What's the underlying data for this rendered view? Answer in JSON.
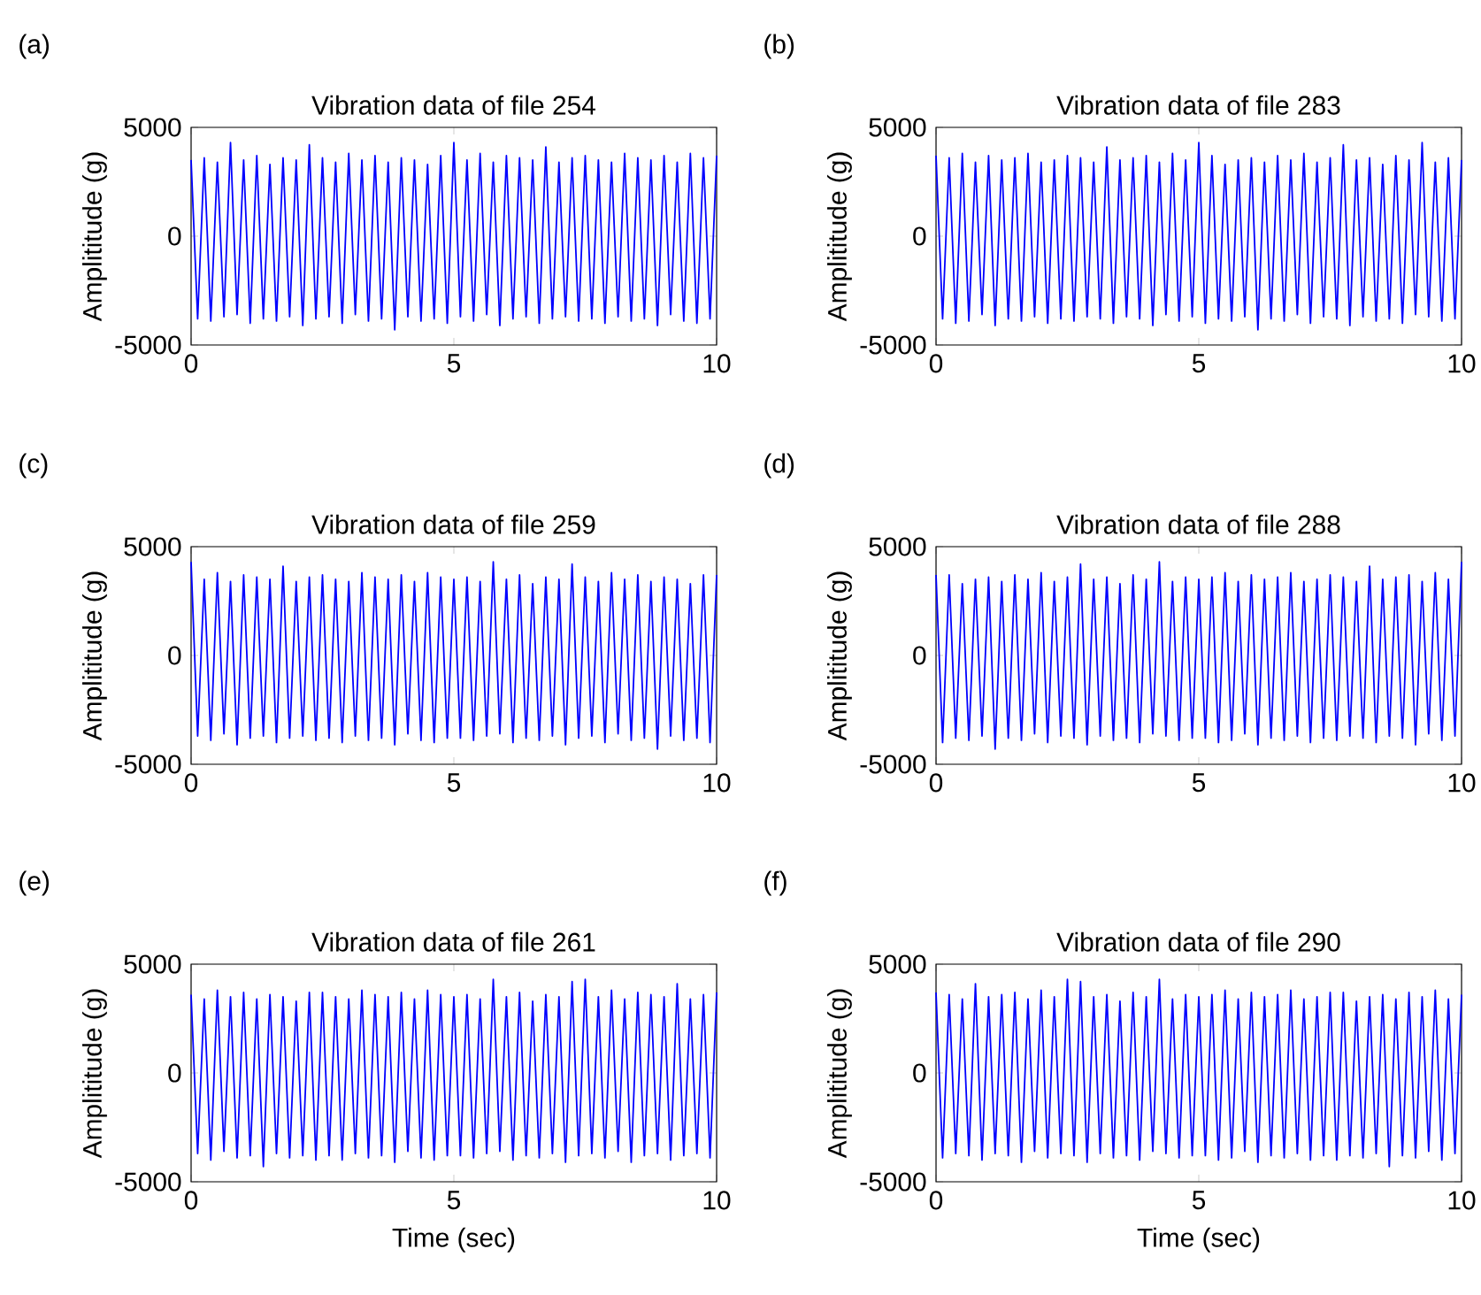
{
  "chart_data": [
    {
      "type": "line",
      "title": "Vibration data of file 254",
      "ylabel": "Amplititude (g)",
      "annotations": [
        "(a)"
      ],
      "color": "#0000ff",
      "xlim": [
        0,
        10
      ],
      "ylim": [
        -5000,
        5000
      ],
      "xticks": [
        0,
        5,
        10
      ],
      "yticks": [
        -5000,
        0,
        5000
      ],
      "x": [
        0,
        0.125,
        0.25,
        0.375,
        0.5,
        0.625,
        0.75,
        0.875,
        1,
        1.125,
        1.25,
        1.375,
        1.5,
        1.625,
        1.75,
        1.875,
        2,
        2.125,
        2.25,
        2.375,
        2.5,
        2.625,
        2.75,
        2.875,
        3,
        3.125,
        3.25,
        3.375,
        3.5,
        3.625,
        3.75,
        3.875,
        4,
        4.125,
        4.25,
        4.375,
        4.5,
        4.625,
        4.75,
        4.875,
        5,
        5.125,
        5.25,
        5.375,
        5.5,
        5.625,
        5.75,
        5.875,
        6,
        6.125,
        6.25,
        6.375,
        6.5,
        6.625,
        6.75,
        6.875,
        7,
        7.125,
        7.25,
        7.375,
        7.5,
        7.625,
        7.75,
        7.875,
        8,
        8.125,
        8.25,
        8.375,
        8.5,
        8.625,
        8.75,
        8.875,
        9,
        9.125,
        9.25,
        9.375,
        9.5,
        9.625,
        9.75,
        9.875,
        10
      ],
      "values": [
        3500,
        -3800,
        3600,
        -3900,
        3400,
        -3700,
        4300,
        -3600,
        3500,
        -4000,
        3700,
        -3800,
        3300,
        -3900,
        3600,
        -3700,
        3500,
        -4100,
        4200,
        -3800,
        3600,
        -3700,
        3400,
        -4000,
        3800,
        -3600,
        3500,
        -3900,
        3700,
        -3800,
        3400,
        -4300,
        3600,
        -3700,
        3500,
        -3900,
        3300,
        -3800,
        3700,
        -4000,
        4300,
        -3700,
        3500,
        -3900,
        3800,
        -3600,
        3400,
        -4100,
        3700,
        -3800,
        3600,
        -3700,
        3500,
        -4000,
        4100,
        -3800,
        3400,
        -3700,
        3600,
        -3900,
        3700,
        -3800,
        3500,
        -4000,
        3400,
        -3700,
        3800,
        -3900,
        3600,
        -3800,
        3500,
        -4100,
        3700,
        -3600,
        3400,
        -3900,
        3800,
        -4000,
        3600,
        -3800,
        3700
      ]
    },
    {
      "type": "line",
      "title": "Vibration data of file 283",
      "ylabel": "Amplititude (g)",
      "annotations": [
        "(b)"
      ],
      "color": "#0000ff",
      "xlim": [
        0,
        10
      ],
      "ylim": [
        -5000,
        5000
      ],
      "xticks": [
        0,
        5,
        10
      ],
      "yticks": [
        -5000,
        0,
        5000
      ],
      "x": [
        0,
        0.125,
        0.25,
        0.375,
        0.5,
        0.625,
        0.75,
        0.875,
        1,
        1.125,
        1.25,
        1.375,
        1.5,
        1.625,
        1.75,
        1.875,
        2,
        2.125,
        2.25,
        2.375,
        2.5,
        2.625,
        2.75,
        2.875,
        3,
        3.125,
        3.25,
        3.375,
        3.5,
        3.625,
        3.75,
        3.875,
        4,
        4.125,
        4.25,
        4.375,
        4.5,
        4.625,
        4.75,
        4.875,
        5,
        5.125,
        5.25,
        5.375,
        5.5,
        5.625,
        5.75,
        5.875,
        6,
        6.125,
        6.25,
        6.375,
        6.5,
        6.625,
        6.75,
        6.875,
        7,
        7.125,
        7.25,
        7.375,
        7.5,
        7.625,
        7.75,
        7.875,
        8,
        8.125,
        8.25,
        8.375,
        8.5,
        8.625,
        8.75,
        8.875,
        9,
        9.125,
        9.25,
        9.375,
        9.5,
        9.625,
        9.75,
        9.875,
        10
      ],
      "values": [
        3700,
        -3800,
        3600,
        -4000,
        3800,
        -3900,
        3400,
        -3600,
        3700,
        -4100,
        3500,
        -3800,
        3600,
        -3900,
        3800,
        -3700,
        3400,
        -4000,
        3500,
        -3800,
        3700,
        -3900,
        3600,
        -3700,
        3400,
        -3800,
        4100,
        -4000,
        3500,
        -3700,
        3600,
        -3800,
        3700,
        -4100,
        3400,
        -3600,
        3800,
        -3900,
        3500,
        -3700,
        4300,
        -4000,
        3700,
        -3800,
        3300,
        -3900,
        3500,
        -3700,
        3600,
        -4300,
        3400,
        -3800,
        3700,
        -3900,
        3500,
        -3600,
        3800,
        -4000,
        3400,
        -3700,
        3600,
        -3800,
        4200,
        -4100,
        3500,
        -3700,
        3600,
        -3900,
        3300,
        -3800,
        3700,
        -4000,
        3500,
        -3600,
        4300,
        -3700,
        3400,
        -3900,
        3600,
        -3800,
        3500
      ]
    },
    {
      "type": "line",
      "title": "Vibration data of file 259",
      "ylabel": "Amplititude (g)",
      "annotations": [
        "(c)"
      ],
      "color": "#0000ff",
      "xlim": [
        0,
        10
      ],
      "ylim": [
        -5000,
        5000
      ],
      "xticks": [
        0,
        5,
        10
      ],
      "yticks": [
        -5000,
        0,
        5000
      ],
      "x": [
        0,
        0.125,
        0.25,
        0.375,
        0.5,
        0.625,
        0.75,
        0.875,
        1,
        1.125,
        1.25,
        1.375,
        1.5,
        1.625,
        1.75,
        1.875,
        2,
        2.125,
        2.25,
        2.375,
        2.5,
        2.625,
        2.75,
        2.875,
        3,
        3.125,
        3.25,
        3.375,
        3.5,
        3.625,
        3.75,
        3.875,
        4,
        4.125,
        4.25,
        4.375,
        4.5,
        4.625,
        4.75,
        4.875,
        5,
        5.125,
        5.25,
        5.375,
        5.5,
        5.625,
        5.75,
        5.875,
        6,
        6.125,
        6.25,
        6.375,
        6.5,
        6.625,
        6.75,
        6.875,
        7,
        7.125,
        7.25,
        7.375,
        7.5,
        7.625,
        7.75,
        7.875,
        8,
        8.125,
        8.25,
        8.375,
        8.5,
        8.625,
        8.75,
        8.875,
        9,
        9.125,
        9.25,
        9.375,
        9.5,
        9.625,
        9.75,
        9.875,
        10
      ],
      "values": [
        4300,
        -3700,
        3500,
        -3900,
        3800,
        -3600,
        3400,
        -4100,
        3700,
        -3800,
        3600,
        -3700,
        3500,
        -4000,
        4100,
        -3800,
        3400,
        -3700,
        3600,
        -3900,
        3700,
        -3800,
        3500,
        -4000,
        3400,
        -3700,
        3800,
        -3900,
        3600,
        -3800,
        3500,
        -4100,
        3700,
        -3600,
        3400,
        -3900,
        3800,
        -4000,
        3600,
        -3800,
        3500,
        -3800,
        3600,
        -3900,
        3400,
        -3700,
        4300,
        -3600,
        3500,
        -4000,
        3700,
        -3800,
        3300,
        -3900,
        3600,
        -3700,
        3500,
        -4100,
        4200,
        -3800,
        3600,
        -3700,
        3400,
        -4000,
        3800,
        -3600,
        3500,
        -3900,
        3700,
        -3800,
        3400,
        -4300,
        3600,
        -3700,
        3500,
        -3900,
        3300,
        -3800,
        3700,
        -4000,
        3700
      ]
    },
    {
      "type": "line",
      "title": "Vibration data of file 288",
      "ylabel": "Amplititude (g)",
      "annotations": [
        "(d)"
      ],
      "color": "#0000ff",
      "xlim": [
        0,
        10
      ],
      "ylim": [
        -5000,
        5000
      ],
      "xticks": [
        0,
        5,
        10
      ],
      "yticks": [
        -5000,
        0,
        5000
      ],
      "x": [
        0,
        0.125,
        0.25,
        0.375,
        0.5,
        0.625,
        0.75,
        0.875,
        1,
        1.125,
        1.25,
        1.375,
        1.5,
        1.625,
        1.75,
        1.875,
        2,
        2.125,
        2.25,
        2.375,
        2.5,
        2.625,
        2.75,
        2.875,
        3,
        3.125,
        3.25,
        3.375,
        3.5,
        3.625,
        3.75,
        3.875,
        4,
        4.125,
        4.25,
        4.375,
        4.5,
        4.625,
        4.75,
        4.875,
        5,
        5.125,
        5.25,
        5.375,
        5.5,
        5.625,
        5.75,
        5.875,
        6,
        6.125,
        6.25,
        6.375,
        6.5,
        6.625,
        6.75,
        6.875,
        7,
        7.125,
        7.25,
        7.375,
        7.5,
        7.625,
        7.75,
        7.875,
        8,
        8.125,
        8.25,
        8.375,
        8.5,
        8.625,
        8.75,
        8.875,
        9,
        9.125,
        9.25,
        9.375,
        9.5,
        9.625,
        9.75,
        9.875,
        10
      ],
      "values": [
        3700,
        -4000,
        3700,
        -3800,
        3300,
        -3900,
        3500,
        -3700,
        3600,
        -4300,
        3400,
        -3800,
        3700,
        -3900,
        3500,
        -3600,
        3800,
        -4000,
        3400,
        -3700,
        3600,
        -3800,
        4200,
        -4100,
        3500,
        -3700,
        3600,
        -3900,
        3300,
        -3800,
        3700,
        -4000,
        3500,
        -3600,
        4300,
        -3700,
        3400,
        -3900,
        3600,
        -3800,
        3500,
        -3800,
        3600,
        -4000,
        3800,
        -3900,
        3400,
        -3600,
        3700,
        -4100,
        3500,
        -3800,
        3600,
        -3900,
        3800,
        -3700,
        3400,
        -4000,
        3500,
        -3800,
        3700,
        -3900,
        3600,
        -3700,
        3400,
        -3800,
        4100,
        -4000,
        3500,
        -3700,
        3600,
        -3800,
        3700,
        -4100,
        3400,
        -3600,
        3800,
        -3900,
        3500,
        -3700,
        4300
      ]
    },
    {
      "type": "line",
      "title": "Vibration data of file 261",
      "xlabel": "Time (sec)",
      "ylabel": "Amplititude (g)",
      "annotations": [
        "(e)"
      ],
      "color": "#0000ff",
      "xlim": [
        0,
        10
      ],
      "ylim": [
        -5000,
        5000
      ],
      "xticks": [
        0,
        5,
        10
      ],
      "yticks": [
        -5000,
        0,
        5000
      ],
      "x": [
        0,
        0.125,
        0.25,
        0.375,
        0.5,
        0.625,
        0.75,
        0.875,
        1,
        1.125,
        1.25,
        1.375,
        1.5,
        1.625,
        1.75,
        1.875,
        2,
        2.125,
        2.25,
        2.375,
        2.5,
        2.625,
        2.75,
        2.875,
        3,
        3.125,
        3.25,
        3.375,
        3.5,
        3.625,
        3.75,
        3.875,
        4,
        4.125,
        4.25,
        4.375,
        4.5,
        4.625,
        4.75,
        4.875,
        5,
        5.125,
        5.25,
        5.375,
        5.5,
        5.625,
        5.75,
        5.875,
        6,
        6.125,
        6.25,
        6.375,
        6.5,
        6.625,
        6.75,
        6.875,
        7,
        7.125,
        7.25,
        7.375,
        7.5,
        7.625,
        7.75,
        7.875,
        8,
        8.125,
        8.25,
        8.375,
        8.5,
        8.625,
        8.75,
        8.875,
        9,
        9.125,
        9.25,
        9.375,
        9.5,
        9.625,
        9.75,
        9.875,
        10
      ],
      "values": [
        3600,
        -3700,
        3400,
        -4000,
        3800,
        -3600,
        3500,
        -3900,
        3700,
        -3800,
        3400,
        -4300,
        3600,
        -3700,
        3500,
        -3900,
        3300,
        -3800,
        3700,
        -4000,
        3700,
        -3800,
        3500,
        -4000,
        3400,
        -3700,
        3800,
        -3900,
        3600,
        -3800,
        3500,
        -4100,
        3700,
        -3600,
        3400,
        -3900,
        3800,
        -4000,
        3600,
        -3800,
        3500,
        -3800,
        3600,
        -3900,
        3400,
        -3700,
        4300,
        -3600,
        3500,
        -4000,
        3700,
        -3800,
        3300,
        -3900,
        3600,
        -3700,
        3500,
        -4100,
        4200,
        -3800,
        4300,
        -3700,
        3500,
        -3900,
        3800,
        -3600,
        3400,
        -4100,
        3700,
        -3800,
        3600,
        -3700,
        3500,
        -4000,
        4100,
        -3800,
        3400,
        -3700,
        3600,
        -3900,
        3700
      ]
    },
    {
      "type": "line",
      "title": "Vibration data of file 290",
      "xlabel": "Time (sec)",
      "ylabel": "Amplititude (g)",
      "annotations": [
        "(f)"
      ],
      "color": "#0000ff",
      "xlim": [
        0,
        10
      ],
      "ylim": [
        -5000,
        5000
      ],
      "xticks": [
        0,
        5,
        10
      ],
      "yticks": [
        -5000,
        0,
        5000
      ],
      "x": [
        0,
        0.125,
        0.25,
        0.375,
        0.5,
        0.625,
        0.75,
        0.875,
        1,
        1.125,
        1.25,
        1.375,
        1.5,
        1.625,
        1.75,
        1.875,
        2,
        2.125,
        2.25,
        2.375,
        2.5,
        2.625,
        2.75,
        2.875,
        3,
        3.125,
        3.25,
        3.375,
        3.5,
        3.625,
        3.75,
        3.875,
        4,
        4.125,
        4.25,
        4.375,
        4.5,
        4.625,
        4.75,
        4.875,
        5,
        5.125,
        5.25,
        5.375,
        5.5,
        5.625,
        5.75,
        5.875,
        6,
        6.125,
        6.25,
        6.375,
        6.5,
        6.625,
        6.75,
        6.875,
        7,
        7.125,
        7.25,
        7.375,
        7.5,
        7.625,
        7.75,
        7.875,
        8,
        8.125,
        8.25,
        8.375,
        8.5,
        8.625,
        8.75,
        8.875,
        9,
        9.125,
        9.25,
        9.375,
        9.5,
        9.625,
        9.75,
        9.875,
        10
      ],
      "values": [
        3700,
        -3900,
        3600,
        -3700,
        3400,
        -3800,
        4100,
        -4000,
        3500,
        -3700,
        3600,
        -3800,
        3700,
        -4100,
        3400,
        -3600,
        3800,
        -3900,
        3500,
        -3700,
        4300,
        -3800,
        4200,
        -4100,
        3500,
        -3700,
        3600,
        -3900,
        3300,
        -3800,
        3700,
        -4000,
        3500,
        -3600,
        4300,
        -3700,
        3400,
        -3900,
        3600,
        -3800,
        3500,
        -3800,
        3600,
        -4000,
        3800,
        -3900,
        3400,
        -3600,
        3700,
        -4100,
        3500,
        -3800,
        3600,
        -3900,
        3800,
        -3700,
        3400,
        -4000,
        3500,
        -3800,
        3700,
        -4000,
        3700,
        -3800,
        3300,
        -3900,
        3500,
        -3700,
        3600,
        -4300,
        3400,
        -3800,
        3700,
        -3900,
        3500,
        -3600,
        3800,
        -4000,
        3400,
        -3700,
        3600
      ]
    }
  ]
}
